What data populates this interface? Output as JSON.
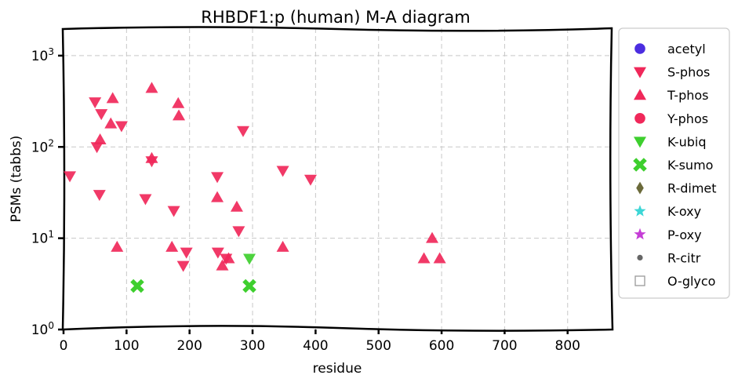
{
  "chart_data": {
    "type": "scatter",
    "title": "RHBDF1:p (human) M-A diagram",
    "xlabel": "residue",
    "ylabel": "PSMs (tabbs)",
    "xlim": [
      0,
      870
    ],
    "ylim_log10": [
      0,
      3.3
    ],
    "yscale": "log",
    "x_ticks": [
      "0",
      "100",
      "200",
      "300",
      "400",
      "500",
      "600",
      "700",
      "800"
    ],
    "y_ticks": [
      {
        "base": "10",
        "exp": "0"
      },
      {
        "base": "10",
        "exp": "1"
      },
      {
        "base": "10",
        "exp": "2"
      },
      {
        "base": "10",
        "exp": "3"
      }
    ],
    "grid": true,
    "legend_position": "outside-right",
    "legend": [
      {
        "label": "acetyl",
        "marker": "circle",
        "color": "#4b2de0"
      },
      {
        "label": "S-phos",
        "marker": "triangle-down",
        "color": "#f0285a"
      },
      {
        "label": "T-phos",
        "marker": "triangle-up",
        "color": "#f0285a"
      },
      {
        "label": "Y-phos",
        "marker": "circle",
        "color": "#f0285a"
      },
      {
        "label": "K-ubiq",
        "marker": "triangle-down",
        "color": "#3ecf2e"
      },
      {
        "label": "K-sumo",
        "marker": "x",
        "color": "#3ecf2e"
      },
      {
        "label": "R-dimet",
        "marker": "diamond",
        "color": "#6b6a3a"
      },
      {
        "label": "K-oxy",
        "marker": "star",
        "color": "#3dd6d6"
      },
      {
        "label": "P-oxy",
        "marker": "star",
        "color": "#c53ed6"
      },
      {
        "label": "R-citr",
        "marker": "dot",
        "color": "#666666"
      },
      {
        "label": "O-glyco",
        "marker": "square-open",
        "color": "#999999"
      }
    ],
    "series": [
      {
        "ptm": "S-phos",
        "points": [
          [
            10,
            48
          ],
          [
            50,
            310
          ],
          [
            60,
            230
          ],
          [
            92,
            170
          ],
          [
            57,
            30
          ],
          [
            130,
            27
          ],
          [
            140,
            70
          ],
          [
            244,
            47
          ],
          [
            175,
            20
          ],
          [
            190,
            5
          ],
          [
            195,
            7
          ],
          [
            245,
            7
          ],
          [
            258,
            6
          ],
          [
            278,
            12
          ],
          [
            285,
            150
          ],
          [
            348,
            55
          ],
          [
            392,
            44
          ],
          [
            53,
            100
          ]
        ]
      },
      {
        "ptm": "T-phos",
        "points": [
          [
            58,
            120
          ],
          [
            78,
            340
          ],
          [
            75,
            180
          ],
          [
            140,
            440
          ],
          [
            182,
            300
          ],
          [
            183,
            220
          ],
          [
            140,
            75
          ],
          [
            244,
            28
          ],
          [
            275,
            22
          ],
          [
            85,
            8
          ],
          [
            172,
            8
          ],
          [
            252,
            5
          ],
          [
            262,
            6
          ],
          [
            348,
            8
          ],
          [
            585,
            10
          ],
          [
            572,
            6
          ],
          [
            597,
            6
          ]
        ]
      },
      {
        "ptm": "K-ubiq",
        "points": [
          [
            295,
            6
          ]
        ]
      },
      {
        "ptm": "K-sumo",
        "points": [
          [
            117,
            3
          ],
          [
            295,
            3
          ]
        ]
      }
    ]
  }
}
